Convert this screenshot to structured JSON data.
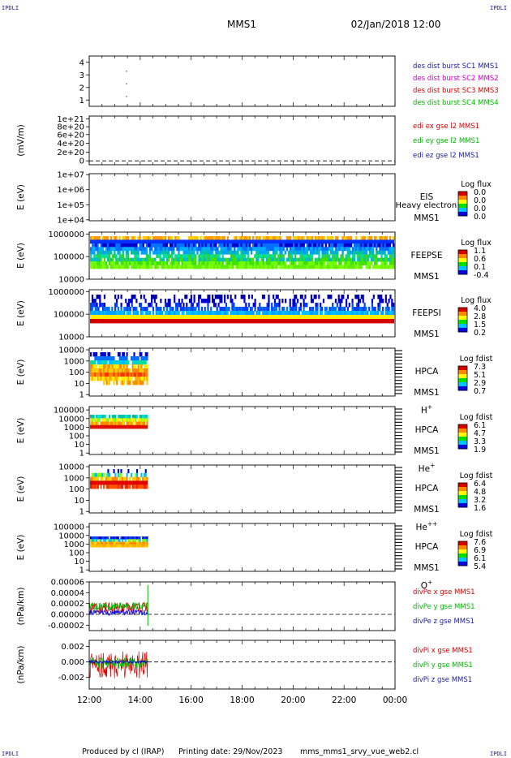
{
  "header": {
    "corner_label": "IPDLI",
    "mission": "MMS1",
    "datetime": "02/Jan/2018 12:00"
  },
  "footer": {
    "produced_by": "Produced by cl (IRAP)",
    "printing_date": "Printing date: 29/Nov/2023",
    "script_name": "mms_mms1_srvy_vue_web2.cl"
  },
  "time_axis": {
    "ticks": [
      "12:00",
      "14:00",
      "16:00",
      "18:00",
      "20:00",
      "22:00",
      "00:00"
    ],
    "start_hour": 12,
    "end_hour": 24,
    "data_end_hour": 14.3
  },
  "colors": {
    "navy": "#1a1aa8",
    "magenta": "#cc00cc",
    "red": "#dd0000",
    "green": "#00bb00",
    "blue": "#0000dd"
  },
  "chart_data": [
    {
      "id": "des",
      "type": "scatter",
      "ylabel": "",
      "yticks": [
        "1",
        "2",
        "3",
        "4"
      ],
      "ylim": [
        0.5,
        4.5
      ],
      "legend": [
        {
          "text": "des dist burst SC1 MMS1",
          "color": "#1a1aa8"
        },
        {
          "text": "des dist burst SC2 MMS2",
          "color": "#cc00cc"
        },
        {
          "text": "des dist burst SC3 MMS3",
          "color": "#dd0000"
        },
        {
          "text": "des dist burst SC4 MMS4",
          "color": "#00bb00"
        }
      ],
      "points": [
        {
          "x": 13.45,
          "y": 3
        },
        {
          "x": 13.45,
          "y": 2
        },
        {
          "x": 13.45,
          "y": 1
        }
      ]
    },
    {
      "id": "edi",
      "type": "line",
      "ylabel": "(mV/m)",
      "yticks": [
        "0",
        "2e+20",
        "4e+20",
        "6e+20",
        "8e+20",
        "1e+21"
      ],
      "legend": [
        {
          "text": "edi ex gse l2 MMS1",
          "color": "#dd0000"
        },
        {
          "text": "edi ey gse l2 MMS1",
          "color": "#00bb00"
        },
        {
          "text": "edi ez gse l2 MMS1",
          "color": "#1a1aa8"
        }
      ]
    },
    {
      "id": "eis",
      "type": "heatmap",
      "ylabel": "E (eV)",
      "yticks": [
        "1e+04",
        "1e+05",
        "1e+06",
        "1e+07"
      ],
      "label_lines": [
        "EIS",
        "MMS1"
      ],
      "overlay": "Heavy electron to",
      "colorbar_title": "Log flux",
      "colorbar_ticks": [
        "0.0",
        "0.0",
        "0.0",
        "0.0"
      ]
    },
    {
      "id": "feepse",
      "type": "heatmap",
      "ylabel": "E (eV)",
      "yticks": [
        "10000",
        "100000",
        "1000000"
      ],
      "label_lines": [
        "FEEPSE",
        "MMS1"
      ],
      "colorbar_title": "Log flux",
      "colorbar_ticks": [
        "1.1",
        "0.6",
        "0.1",
        "-0.4"
      ]
    },
    {
      "id": "feepsi",
      "type": "heatmap",
      "ylabel": "E (eV)",
      "yticks": [
        "10000",
        "100000",
        "1000000"
      ],
      "label_lines": [
        "FEEPSI",
        "MMS1"
      ],
      "colorbar_title": "Log flux",
      "colorbar_ticks": [
        "4.0",
        "2.8",
        "1.5",
        "0.2"
      ]
    },
    {
      "id": "hpca_h",
      "type": "heatmap",
      "ylabel": "E (eV)",
      "yticks": [
        "1",
        "10",
        "100",
        "1000",
        "10000"
      ],
      "label_lines": [
        "HPCA",
        "MMS1"
      ],
      "species": "H",
      "species_sup": "+",
      "colorbar_title": "Log fdist",
      "colorbar_ticks": [
        "7.3",
        "5.1",
        "2.9",
        "0.7"
      ]
    },
    {
      "id": "hpca_he",
      "type": "heatmap",
      "ylabel": "E (eV)",
      "yticks": [
        "1",
        "10",
        "100",
        "1000",
        "10000",
        "100000"
      ],
      "label_lines": [
        "HPCA",
        "MMS1"
      ],
      "species": "He",
      "species_sup": "+",
      "colorbar_title": "Log fdist",
      "colorbar_ticks": [
        "6.1",
        "4.7",
        "3.3",
        "1.9"
      ]
    },
    {
      "id": "hpca_hepp",
      "type": "heatmap",
      "ylabel": "E (eV)",
      "yticks": [
        "1",
        "10",
        "100",
        "1000",
        "10000"
      ],
      "label_lines": [
        "HPCA",
        "MMS1"
      ],
      "species": "He",
      "species_sup": "++",
      "colorbar_title": "Log fdist",
      "colorbar_ticks": [
        "6.4",
        "4.8",
        "3.2",
        "1.6"
      ]
    },
    {
      "id": "hpca_o",
      "type": "heatmap",
      "ylabel": "E (eV)",
      "yticks": [
        "1",
        "10",
        "100",
        "1000",
        "10000",
        "100000"
      ],
      "label_lines": [
        "HPCA",
        "MMS1"
      ],
      "species": "O",
      "species_sup": "+",
      "colorbar_title": "Log fdist",
      "colorbar_ticks": [
        "7.6",
        "6.9",
        "6.1",
        "5.4"
      ]
    },
    {
      "id": "divpe",
      "type": "line",
      "ylabel": "(nPa/km)",
      "yticks": [
        "-0.00002",
        "0.00000",
        "0.00002",
        "0.00004",
        "0.00006"
      ],
      "ylim": [
        -3e-05,
        6e-05
      ],
      "legend": [
        {
          "text": "divPe x gse MMS1",
          "color": "#dd0000"
        },
        {
          "text": "divPe y gse MMS1",
          "color": "#00bb00"
        },
        {
          "text": "divPe z gse MMS1",
          "color": "#1a1aa8"
        }
      ]
    },
    {
      "id": "divpi",
      "type": "line",
      "ylabel": "(nPa/km)",
      "yticks": [
        "-0.002",
        "0.000",
        "0.002"
      ],
      "ylim": [
        -0.0035,
        0.0028
      ],
      "legend": [
        {
          "text": "divPi x gse MMS1",
          "color": "#dd0000"
        },
        {
          "text": "divPi y gse MMS1",
          "color": "#00bb00"
        },
        {
          "text": "divPi z gse MMS1",
          "color": "#1a1aa8"
        }
      ]
    }
  ]
}
